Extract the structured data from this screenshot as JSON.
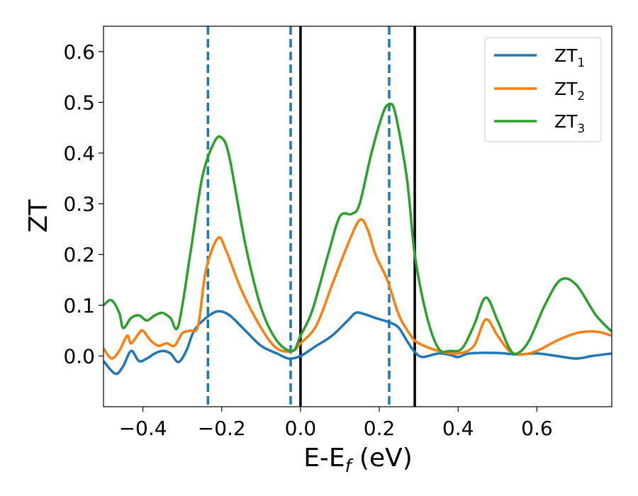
{
  "chart_data": {
    "type": "line",
    "xlabel": "E-E",
    "xlabel_sub": "f",
    "xlabel_unit": " (eV)",
    "ylabel": "ZT",
    "xlim": [
      -0.5,
      0.79
    ],
    "ylim": [
      -0.1,
      0.65
    ],
    "xticks": [
      -0.4,
      -0.2,
      0.0,
      0.2,
      0.4,
      0.6
    ],
    "xtick_labels": [
      "−0.4",
      "−0.2",
      "0.0",
      "0.2",
      "0.4",
      "0.6"
    ],
    "yticks": [
      0.0,
      0.1,
      0.2,
      0.3,
      0.4,
      0.5,
      0.6
    ],
    "ytick_labels": [
      "0.0",
      "0.1",
      "0.2",
      "0.3",
      "0.4",
      "0.5",
      "0.6"
    ],
    "grid": false,
    "legend_position": "top-right",
    "vlines": [
      {
        "x": -0.235,
        "style": "dashed",
        "color": "#1f77b4"
      },
      {
        "x": -0.025,
        "style": "dashed",
        "color": "#1f77b4"
      },
      {
        "x": 0.225,
        "style": "dashed",
        "color": "#1f77b4"
      },
      {
        "x": 0.0,
        "style": "solid",
        "color": "#000000"
      },
      {
        "x": 0.29,
        "style": "solid",
        "color": "#000000"
      }
    ],
    "series": [
      {
        "name": "ZT",
        "sub": "1",
        "color": "#1f77b4",
        "points": [
          [
            -0.5,
            -0.01
          ],
          [
            -0.47,
            -0.035
          ],
          [
            -0.45,
            -0.02
          ],
          [
            -0.43,
            0.01
          ],
          [
            -0.41,
            -0.01
          ],
          [
            -0.39,
            -0.005
          ],
          [
            -0.37,
            0.005
          ],
          [
            -0.35,
            0.01
          ],
          [
            -0.33,
            0.005
          ],
          [
            -0.31,
            -0.012
          ],
          [
            -0.29,
            0.01
          ],
          [
            -0.27,
            0.05
          ],
          [
            -0.24,
            0.075
          ],
          [
            -0.21,
            0.088
          ],
          [
            -0.18,
            0.08
          ],
          [
            -0.14,
            0.05
          ],
          [
            -0.1,
            0.02
          ],
          [
            -0.06,
            0.005
          ],
          [
            -0.03,
            -0.005
          ],
          [
            0.0,
            0.0
          ],
          [
            0.04,
            0.02
          ],
          [
            0.08,
            0.04
          ],
          [
            0.12,
            0.07
          ],
          [
            0.14,
            0.085
          ],
          [
            0.16,
            0.083
          ],
          [
            0.19,
            0.075
          ],
          [
            0.23,
            0.065
          ],
          [
            0.25,
            0.055
          ],
          [
            0.27,
            0.03
          ],
          [
            0.29,
            0.008
          ],
          [
            0.31,
            -0.002
          ],
          [
            0.35,
            0.005
          ],
          [
            0.38,
            0.002
          ],
          [
            0.4,
            -0.002
          ],
          [
            0.43,
            0.005
          ],
          [
            0.5,
            0.006
          ],
          [
            0.55,
            0.003
          ],
          [
            0.6,
            0.005
          ],
          [
            0.65,
            0.0
          ],
          [
            0.7,
            -0.005
          ],
          [
            0.74,
            0.0
          ],
          [
            0.79,
            0.005
          ]
        ]
      },
      {
        "name": "ZT",
        "sub": "2",
        "color": "#ff7f0e",
        "points": [
          [
            -0.5,
            0.015
          ],
          [
            -0.48,
            -0.005
          ],
          [
            -0.46,
            0.01
          ],
          [
            -0.44,
            0.04
          ],
          [
            -0.43,
            0.025
          ],
          [
            -0.41,
            0.045
          ],
          [
            -0.4,
            0.05
          ],
          [
            -0.38,
            0.03
          ],
          [
            -0.36,
            0.02
          ],
          [
            -0.34,
            0.025
          ],
          [
            -0.32,
            0.02
          ],
          [
            -0.3,
            0.045
          ],
          [
            -0.28,
            0.05
          ],
          [
            -0.26,
            0.06
          ],
          [
            -0.24,
            0.17
          ],
          [
            -0.21,
            0.232
          ],
          [
            -0.19,
            0.21
          ],
          [
            -0.15,
            0.13
          ],
          [
            -0.1,
            0.055
          ],
          [
            -0.06,
            0.015
          ],
          [
            -0.02,
            0.01
          ],
          [
            0.0,
            0.025
          ],
          [
            0.04,
            0.06
          ],
          [
            0.08,
            0.14
          ],
          [
            0.12,
            0.22
          ],
          [
            0.15,
            0.268
          ],
          [
            0.17,
            0.25
          ],
          [
            0.19,
            0.2
          ],
          [
            0.22,
            0.15
          ],
          [
            0.25,
            0.08
          ],
          [
            0.28,
            0.04
          ],
          [
            0.3,
            0.025
          ],
          [
            0.35,
            0.01
          ],
          [
            0.4,
            0.005
          ],
          [
            0.44,
            0.02
          ],
          [
            0.47,
            0.072
          ],
          [
            0.5,
            0.04
          ],
          [
            0.53,
            0.01
          ],
          [
            0.56,
            0.003
          ],
          [
            0.6,
            0.01
          ],
          [
            0.65,
            0.03
          ],
          [
            0.7,
            0.045
          ],
          [
            0.75,
            0.048
          ],
          [
            0.79,
            0.04
          ]
        ]
      },
      {
        "name": "ZT",
        "sub": "3",
        "color": "#2ca02c",
        "points": [
          [
            -0.5,
            0.1
          ],
          [
            -0.48,
            0.11
          ],
          [
            -0.46,
            0.085
          ],
          [
            -0.45,
            0.055
          ],
          [
            -0.43,
            0.075
          ],
          [
            -0.41,
            0.08
          ],
          [
            -0.39,
            0.07
          ],
          [
            -0.37,
            0.08
          ],
          [
            -0.35,
            0.085
          ],
          [
            -0.33,
            0.075
          ],
          [
            -0.31,
            0.06
          ],
          [
            -0.28,
            0.2
          ],
          [
            -0.25,
            0.35
          ],
          [
            -0.22,
            0.42
          ],
          [
            -0.2,
            0.43
          ],
          [
            -0.18,
            0.39
          ],
          [
            -0.14,
            0.22
          ],
          [
            -0.1,
            0.095
          ],
          [
            -0.06,
            0.03
          ],
          [
            -0.02,
            0.01
          ],
          [
            0.0,
            0.04
          ],
          [
            0.03,
            0.09
          ],
          [
            0.07,
            0.2
          ],
          [
            0.1,
            0.275
          ],
          [
            0.13,
            0.28
          ],
          [
            0.15,
            0.3
          ],
          [
            0.18,
            0.4
          ],
          [
            0.21,
            0.48
          ],
          [
            0.225,
            0.495
          ],
          [
            0.24,
            0.48
          ],
          [
            0.27,
            0.35
          ],
          [
            0.29,
            0.2
          ],
          [
            0.32,
            0.08
          ],
          [
            0.35,
            0.015
          ],
          [
            0.38,
            0.01
          ],
          [
            0.41,
            0.015
          ],
          [
            0.44,
            0.06
          ],
          [
            0.47,
            0.115
          ],
          [
            0.5,
            0.07
          ],
          [
            0.53,
            0.015
          ],
          [
            0.55,
            0.005
          ],
          [
            0.58,
            0.03
          ],
          [
            0.62,
            0.1
          ],
          [
            0.66,
            0.15
          ],
          [
            0.7,
            0.14
          ],
          [
            0.75,
            0.08
          ],
          [
            0.79,
            0.048
          ]
        ]
      }
    ]
  }
}
